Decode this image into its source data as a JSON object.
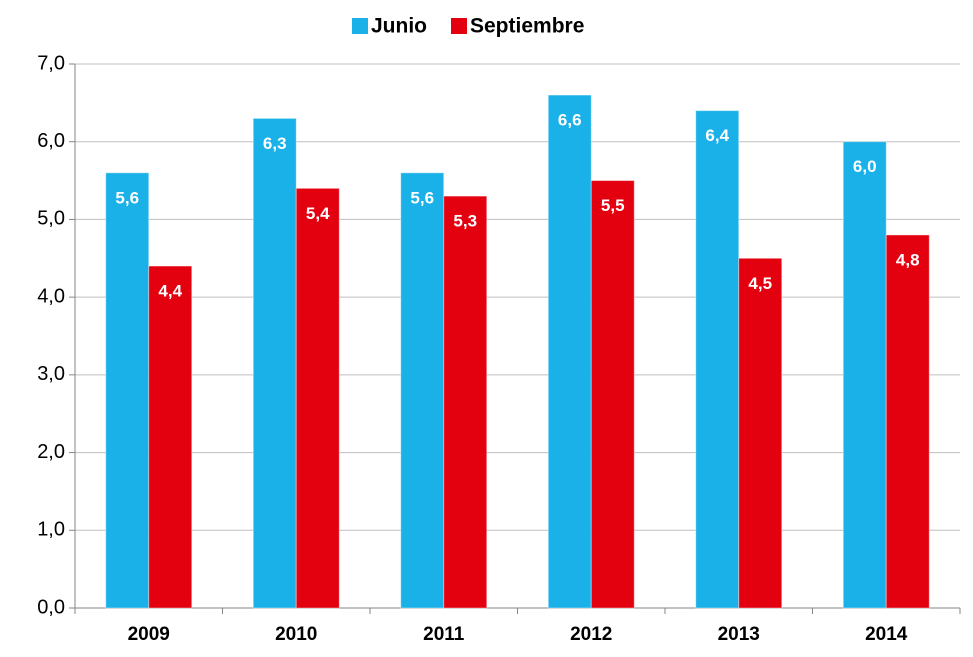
{
  "chart_data": {
    "type": "bar",
    "categories": [
      "2009",
      "2010",
      "2011",
      "2012",
      "2013",
      "2014"
    ],
    "series": [
      {
        "name": "Junio",
        "color": "#1ab0e8",
        "values": [
          5.6,
          6.3,
          5.6,
          6.6,
          6.4,
          6.0
        ],
        "value_labels": [
          "5,6",
          "6,3",
          "5,6",
          "6,6",
          "6,4",
          "6,0"
        ]
      },
      {
        "name": "Septiembre",
        "color": "#e3000f",
        "values": [
          4.4,
          5.4,
          5.3,
          5.5,
          4.5,
          4.8
        ],
        "value_labels": [
          "4,4",
          "5,4",
          "5,3",
          "5,5",
          "4,5",
          "4,8"
        ]
      }
    ],
    "ylim": [
      0,
      7
    ],
    "yticks": [
      {
        "value": 0,
        "label": "0,0"
      },
      {
        "value": 1,
        "label": "1,0"
      },
      {
        "value": 2,
        "label": "2,0"
      },
      {
        "value": 3,
        "label": "3,0"
      },
      {
        "value": 4,
        "label": "4,0"
      },
      {
        "value": 5,
        "label": "5,0"
      },
      {
        "value": 6,
        "label": "6,0"
      },
      {
        "value": 7,
        "label": "7,0"
      }
    ],
    "grid": true,
    "legend": "top"
  }
}
